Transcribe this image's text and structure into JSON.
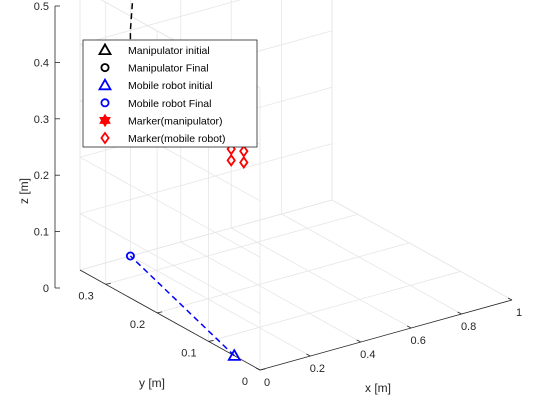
{
  "chart_data": {
    "type": "scatter3d",
    "title": "",
    "xlabel": "x [m]",
    "ylabel": "y [m]",
    "zlabel": "z [m]",
    "xlim": [
      0,
      1
    ],
    "ylim": [
      0,
      0.35
    ],
    "zlim": [
      0,
      0.5
    ],
    "x_ticks": [
      0,
      0.2,
      0.4,
      0.6,
      0.8,
      1
    ],
    "y_ticks": [
      0,
      0.1,
      0.2,
      0.3
    ],
    "z_ticks": [
      0,
      0.1,
      0.2,
      0.3,
      0.4,
      0.5
    ],
    "x_tick_labels": [
      "0",
      "0.2",
      "0.4",
      "0.6",
      "0.8",
      "1"
    ],
    "y_tick_labels": [
      "0",
      "0.1",
      "0.2",
      "0.3"
    ],
    "z_tick_labels": [
      "0",
      "0.1",
      "0.2",
      "0.3",
      "0.4",
      "0.5"
    ],
    "grid": true,
    "legend_position": "top-left",
    "series": [
      {
        "name": "Manipulator initial",
        "marker": "triangle",
        "color": "#000000",
        "filled": false,
        "points": [
          [
            0.2,
            0.35,
            0.225
          ]
        ]
      },
      {
        "name": "Manipulator Final",
        "marker": "circle",
        "color": "#000000",
        "filled": false,
        "points": [
          [
            0.3,
            0.355,
            0.5
          ]
        ]
      },
      {
        "name": "Mobile robot initial",
        "marker": "triangle",
        "color": "#0000ff",
        "filled": false,
        "points": [
          [
            0.0,
            0.05,
            0.0
          ]
        ]
      },
      {
        "name": "Mobile robot Final",
        "marker": "circle",
        "color": "#0000ff",
        "filled": false,
        "points": [
          [
            0.2,
            0.35,
            0.0
          ]
        ]
      },
      {
        "name": "Marker(manipulator)",
        "marker": "hexagram",
        "color": "#ff0000",
        "filled": true,
        "points": [
          [
            0.42,
            0.35,
            0.5
          ],
          [
            0.42,
            0.35,
            0.47
          ],
          [
            0.47,
            0.35,
            0.49
          ],
          [
            0.47,
            0.35,
            0.46
          ]
        ]
      },
      {
        "name": "Marker(mobile robot)",
        "marker": "diamond",
        "color": "#ff0000",
        "filled": false,
        "points": [
          [
            0.6,
            0.35,
            0.14
          ],
          [
            0.6,
            0.35,
            0.12
          ],
          [
            0.65,
            0.35,
            0.13
          ],
          [
            0.65,
            0.35,
            0.11
          ]
        ]
      }
    ],
    "paths": [
      {
        "series": "Manipulator",
        "style": "dashed",
        "color": "#000000",
        "points": [
          [
            0.2,
            0.35,
            0.225
          ],
          [
            0.2,
            0.35,
            0.4
          ],
          [
            0.21,
            0.35,
            0.46
          ],
          [
            0.25,
            0.352,
            0.49
          ],
          [
            0.3,
            0.355,
            0.5
          ]
        ]
      },
      {
        "series": "Mobile robot",
        "style": "dashed",
        "color": "#0000ff",
        "points": [
          [
            0.0,
            0.05,
            0.0
          ],
          [
            0.2,
            0.35,
            0.0
          ]
        ]
      }
    ]
  }
}
